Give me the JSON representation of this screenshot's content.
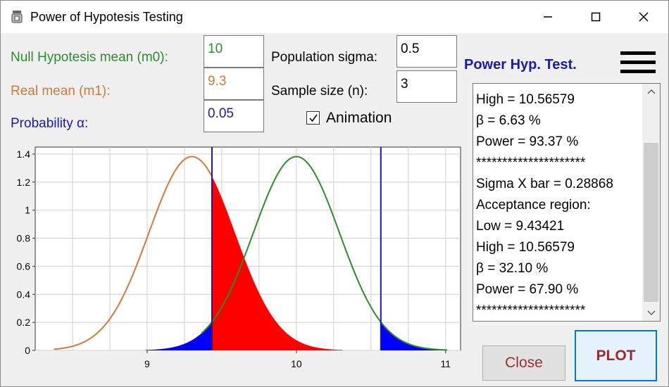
{
  "window": {
    "title": "Power of Hypotesis Testing",
    "icon": "app-icon",
    "controls": [
      "minimize-icon",
      "maximize-icon",
      "close-icon"
    ]
  },
  "inputs": {
    "m0": {
      "label": "Null Hypotesis mean (m0):",
      "value": "10",
      "color": "#2e8b2e"
    },
    "m1": {
      "label": "Real mean (m1):",
      "value": "9.3",
      "color": "#d07a3a"
    },
    "alpha": {
      "label": "Probability α:",
      "value": "0.05",
      "color": "#1a1ab0"
    },
    "sigma": {
      "label": "Population sigma:",
      "value": "0.5"
    },
    "n": {
      "label": "Sample size (n):",
      "value": "3"
    },
    "animation": {
      "label": "Animation",
      "checked": true
    }
  },
  "panel": {
    "heading": "Power Hyp. Test.",
    "menu_icon": "hamburger-menu-icon",
    "results": [
      "High = 10.56579",
      "β = 6.63 %",
      "Power = 93.37 %",
      "*********************",
      "Sigma X bar = 0.28868",
      "Acceptance region:",
      "Low = 9.43421",
      "High = 10.56579",
      "β = 32.10 %",
      "Power = 67.90 %",
      "*********************"
    ]
  },
  "buttons": {
    "close": "Close",
    "plot": "PLOT"
  },
  "chart_data": {
    "type": "area",
    "xlim": [
      8.25,
      11.1
    ],
    "ylim": [
      0,
      1.45
    ],
    "x_ticks": [
      "9",
      "10",
      "11"
    ],
    "x_tick_values": [
      9,
      10,
      11
    ],
    "y_ticks": [
      "0",
      "0.2",
      "0.4",
      "0.6",
      "0.8",
      "1",
      "1.2",
      "1.4"
    ],
    "y_tick_values": [
      0,
      0.2,
      0.4,
      0.6,
      0.8,
      1,
      1.2,
      1.4
    ],
    "grid": true,
    "critical_low": 9.43421,
    "critical_high": 10.56579,
    "sigma_x_bar": 0.28868,
    "series": [
      {
        "mean": 9.3,
        "color": "#d07a3a"
      },
      {
        "mean": 10,
        "color": "#2e8b2e"
      }
    ],
    "fills": {
      "alpha_tails": "#0000ff",
      "power_region": "#ff0000",
      "critical_lines": "#1a1a9a"
    }
  }
}
